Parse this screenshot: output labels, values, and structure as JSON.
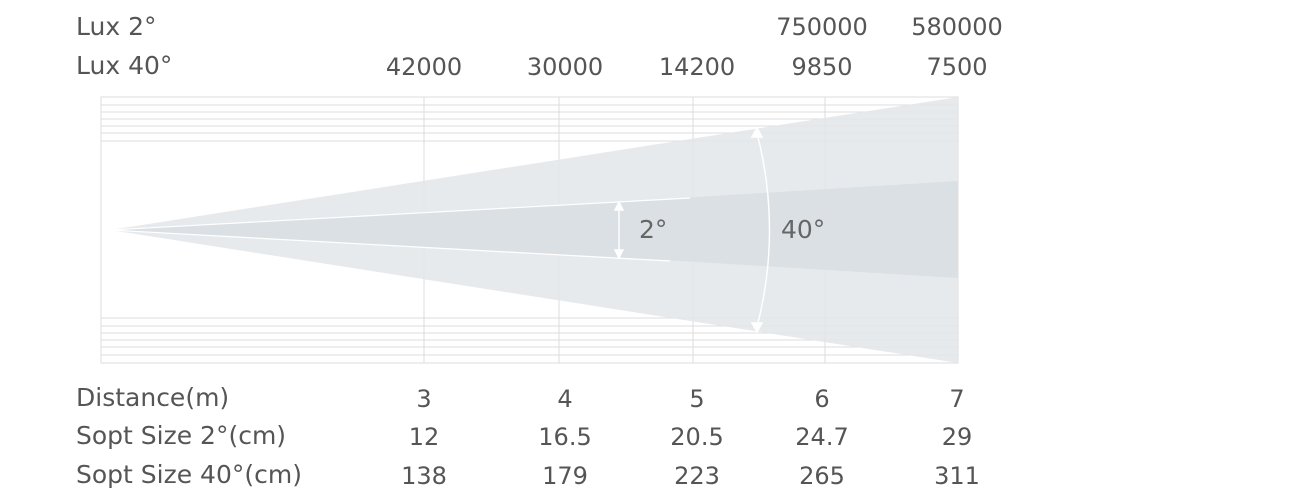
{
  "rows": {
    "lux2": {
      "label": "Lux 2°",
      "values": [
        "",
        "",
        "",
        "750000",
        "580000"
      ]
    },
    "lux40": {
      "label": "Lux 40°",
      "values": [
        "42000",
        "30000",
        "14200",
        "9850",
        "7500"
      ]
    },
    "distance": {
      "label": "Distance(m)",
      "values": [
        "3",
        "4",
        "5",
        "6",
        "7"
      ]
    },
    "spot2": {
      "label": "Sopt Size 2°(cm)",
      "values": [
        "12",
        "16.5",
        "20.5",
        "24.7",
        "29"
      ]
    },
    "spot40": {
      "label": "Sopt Size 40°(cm)",
      "values": [
        "138",
        "179",
        "223",
        "265",
        "311"
      ]
    }
  },
  "beam": {
    "narrow_angle_label": "2°",
    "wide_angle_label": "40°"
  },
  "colors": {
    "wide_beam": "#e9ebef",
    "narrow_beam": "#dde1e6",
    "grid": "#dcdcdc",
    "text": "#555555"
  }
}
